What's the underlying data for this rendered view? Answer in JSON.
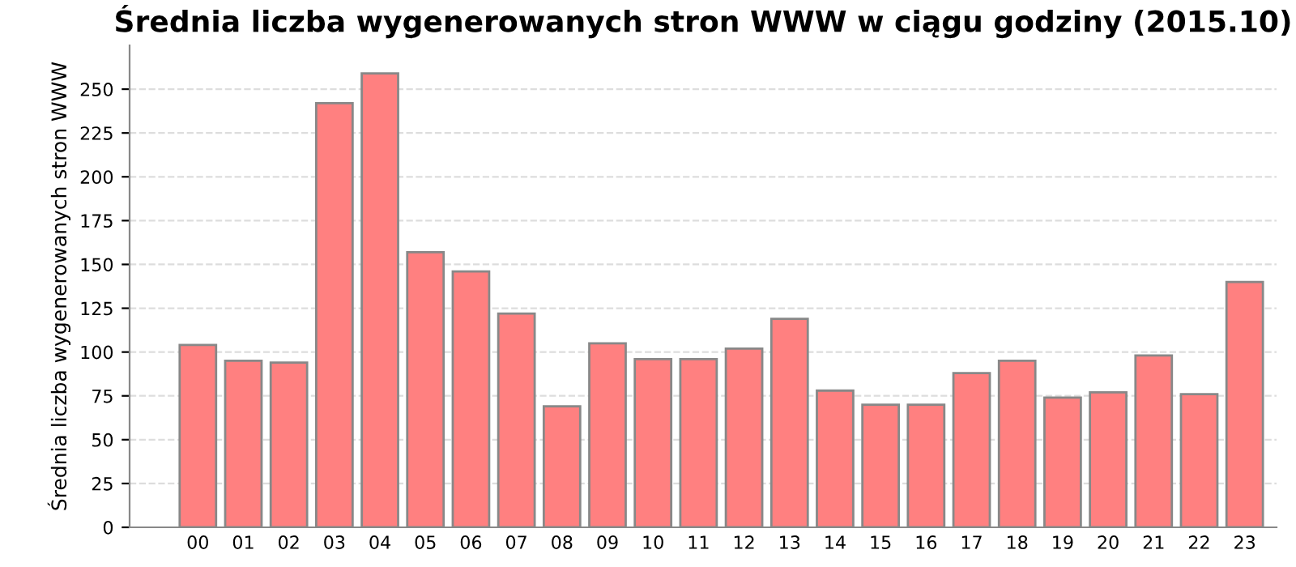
{
  "chart_data": {
    "type": "bar",
    "title": "Średnia liczba wygenerowanych stron WWW w ciągu godziny (2015.10)",
    "ylabel": "Średnia liczba wygenerowanych stron WWW",
    "categories": [
      "00",
      "01",
      "02",
      "03",
      "04",
      "05",
      "06",
      "07",
      "08",
      "09",
      "10",
      "11",
      "12",
      "13",
      "14",
      "15",
      "16",
      "17",
      "18",
      "19",
      "20",
      "21",
      "22",
      "23"
    ],
    "values": [
      104,
      95,
      94,
      242,
      259,
      157,
      146,
      122,
      69,
      105,
      96,
      96,
      102,
      119,
      78,
      70,
      70,
      88,
      95,
      74,
      77,
      98,
      76,
      140
    ],
    "color": "#ff8080",
    "ylim": [
      0,
      275
    ],
    "yticks": [
      0,
      25,
      50,
      75,
      100,
      125,
      150,
      175,
      200,
      225,
      250
    ],
    "grid": "y"
  }
}
